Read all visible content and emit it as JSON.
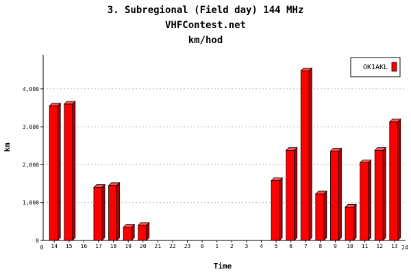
{
  "chart_data": {
    "type": "bar",
    "title": "3. Subregional (Field day) 144 MHz",
    "subtitle": "VHFContest.net",
    "subtitle2": "km/hod",
    "xlabel": "Time",
    "ylabel": "km",
    "categories": [
      "14",
      "15",
      "16",
      "17",
      "18",
      "19",
      "20",
      "21",
      "22",
      "23",
      "0",
      "1",
      "2",
      "3",
      "4",
      "5",
      "6",
      "7",
      "8",
      "9",
      "10",
      "11",
      "12",
      "13"
    ],
    "x_ticks": [
      "0",
      "24"
    ],
    "series": [
      {
        "name": "OK1AKL",
        "color": "#ff0000",
        "values": [
          3550,
          3600,
          0,
          1400,
          1450,
          350,
          400,
          0,
          0,
          0,
          0,
          0,
          0,
          0,
          0,
          1580,
          2380,
          4480,
          1230,
          2360,
          880,
          2050,
          2380,
          3130
        ]
      }
    ],
    "ylim": [
      0,
      4900
    ],
    "yticks": [
      0,
      1000,
      2000,
      3000,
      4000
    ],
    "ytick_labels": [
      "0",
      "1,000",
      "2,000",
      "3,000",
      "4,000"
    ],
    "grid": true,
    "legend_position": "top-right"
  }
}
